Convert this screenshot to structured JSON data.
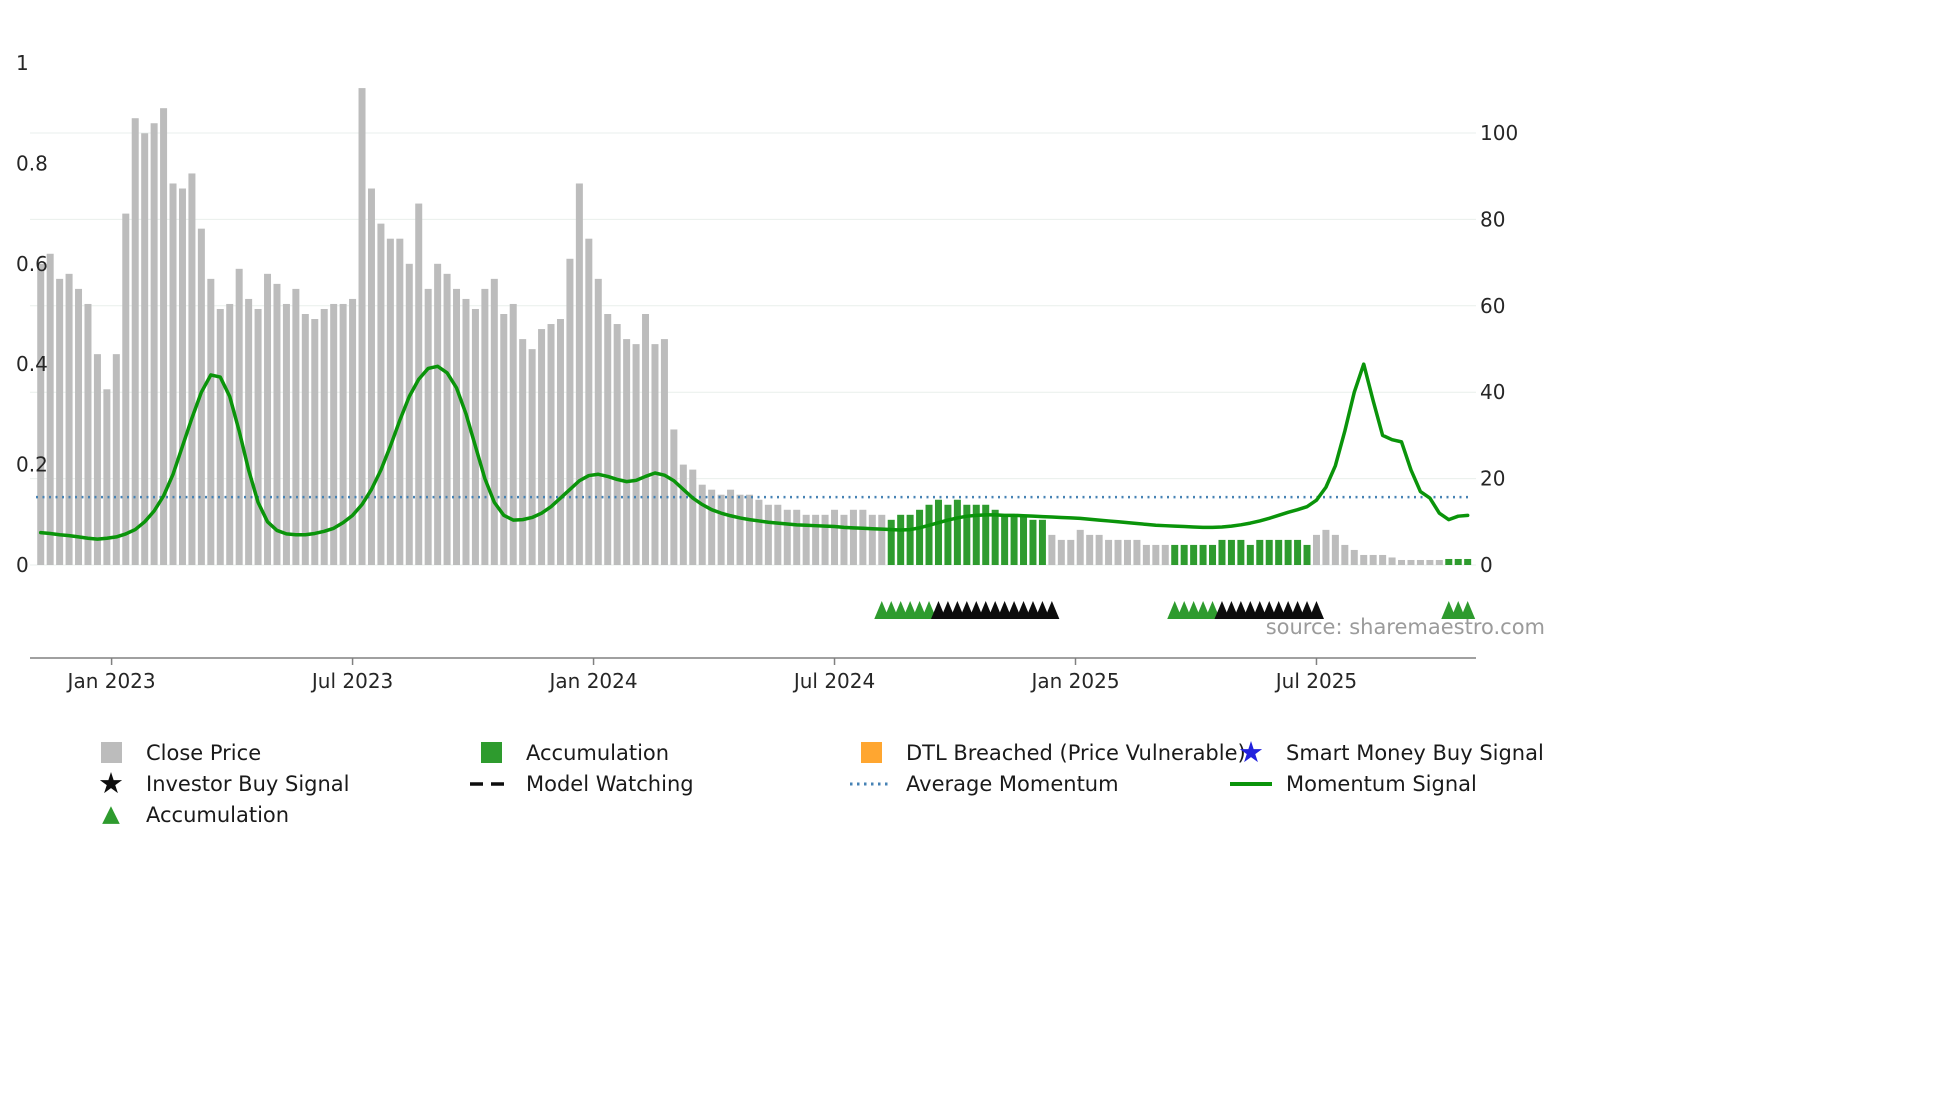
{
  "source_text": "source: sharemaestro.com",
  "colors": {
    "close": "#bcbcbc",
    "accumulation": "#2e9b2e",
    "momentum": "#0a940a",
    "avg_momentum": "#4682b4",
    "dtl": "#ffa630",
    "smart_money": "#2222dd",
    "investor": "#0d0d0d",
    "axis_text": "#262626",
    "axis_line": "#808080",
    "grid": "#e9efec",
    "source_text": "#9b9b9b"
  },
  "legend": {
    "close_price": "Close Price",
    "investor_buy_signal": "Investor Buy Signal",
    "accumulation_marker": "Accumulation",
    "accumulation_bar": "Accumulation",
    "model_watching": "Model Watching",
    "dtl_breached": "DTL Breached (Price Vulnerable)",
    "average_momentum": "Average Momentum",
    "smart_money": "Smart Money Buy Signal",
    "momentum_signal": "Momentum Signal"
  },
  "chart_data": {
    "type": "bar+line",
    "title": "",
    "n_points": 152,
    "x_axis": {
      "tick_labels": [
        "Jan 2023",
        "Jul 2023",
        "Jan 2024",
        "Jul 2024",
        "Jan 2025",
        "Jul 2025"
      ],
      "tick_positions": [
        7.5,
        33,
        58.5,
        84,
        109.5,
        135
      ]
    },
    "left_axis": {
      "ticks": [
        "0",
        "0.2",
        "0.4",
        "0.6",
        "0.8",
        "1"
      ],
      "values": [
        0,
        0.2,
        0.4,
        0.6,
        0.8,
        1
      ],
      "range": [
        0,
        1
      ]
    },
    "right_axis": {
      "ticks": [
        0,
        20,
        40,
        60,
        80,
        100
      ],
      "range": [
        0,
        116
      ]
    },
    "close_price": [
      0.6,
      0.62,
      0.57,
      0.58,
      0.55,
      0.52,
      0.42,
      0.35,
      0.42,
      0.7,
      0.89,
      0.86,
      0.88,
      0.91,
      0.76,
      0.75,
      0.78,
      0.67,
      0.57,
      0.51,
      0.52,
      0.59,
      0.53,
      0.51,
      0.58,
      0.56,
      0.52,
      0.55,
      0.5,
      0.49,
      0.51,
      0.52,
      0.52,
      0.53,
      0.95,
      0.75,
      0.68,
      0.65,
      0.65,
      0.6,
      0.72,
      0.55,
      0.6,
      0.58,
      0.55,
      0.53,
      0.51,
      0.55,
      0.57,
      0.5,
      0.52,
      0.45,
      0.43,
      0.47,
      0.48,
      0.49,
      0.61,
      0.76,
      0.65,
      0.57,
      0.5,
      0.48,
      0.45,
      0.44,
      0.5,
      0.44,
      0.45,
      0.27,
      0.2,
      0.19,
      0.16,
      0.15,
      0.14,
      0.15,
      0.14,
      0.14,
      0.13,
      0.12,
      0.12,
      0.11,
      0.11,
      0.1,
      0.1,
      0.1,
      0.11,
      0.1,
      0.11,
      0.11,
      0.1,
      0.1,
      0.09,
      0.1,
      0.1,
      0.11,
      0.12,
      0.13,
      0.12,
      0.13,
      0.12,
      0.12,
      0.12,
      0.11,
      0.1,
      0.1,
      0.1,
      0.09,
      0.09,
      0.06,
      0.05,
      0.05,
      0.07,
      0.06,
      0.06,
      0.05,
      0.05,
      0.05,
      0.05,
      0.04,
      0.04,
      0.04,
      0.04,
      0.04,
      0.04,
      0.04,
      0.04,
      0.05,
      0.05,
      0.05,
      0.04,
      0.05,
      0.05,
      0.05,
      0.05,
      0.05,
      0.04,
      0.06,
      0.07,
      0.06,
      0.04,
      0.03,
      0.02,
      0.02,
      0.02,
      0.015,
      0.01,
      0.01,
      0.01,
      0.01,
      0.01,
      0.012,
      0.012,
      0.012
    ],
    "accumulation_bar_ranges": [
      [
        90,
        106
      ],
      [
        120,
        134
      ],
      [
        149,
        151
      ]
    ],
    "momentum_signal": [
      7.5,
      7.3,
      7.0,
      6.8,
      6.5,
      6.2,
      6.0,
      6.2,
      6.5,
      7.2,
      8.2,
      10.0,
      12.5,
      16.0,
      21.0,
      27.5,
      34.0,
      40.0,
      44.0,
      43.5,
      39.0,
      31.0,
      22.0,
      14.5,
      10.0,
      8.0,
      7.2,
      7.0,
      7.0,
      7.3,
      7.8,
      8.5,
      9.8,
      11.5,
      14.0,
      17.5,
      22.0,
      27.5,
      33.5,
      39.0,
      43.0,
      45.5,
      46.0,
      44.5,
      41.0,
      35.0,
      27.5,
      20.0,
      14.5,
      11.5,
      10.4,
      10.5,
      11.0,
      12.0,
      13.5,
      15.5,
      17.5,
      19.5,
      20.7,
      21.0,
      20.5,
      19.8,
      19.3,
      19.6,
      20.5,
      21.3,
      20.8,
      19.5,
      17.5,
      15.5,
      14.0,
      12.8,
      12.0,
      11.4,
      10.9,
      10.5,
      10.2,
      9.9,
      9.7,
      9.5,
      9.3,
      9.2,
      9.1,
      9.0,
      8.9,
      8.7,
      8.6,
      8.5,
      8.4,
      8.3,
      8.2,
      8.1,
      8.2,
      8.6,
      9.2,
      9.8,
      10.4,
      10.9,
      11.3,
      11.5,
      11.6,
      11.6,
      11.5,
      11.5,
      11.4,
      11.3,
      11.2,
      11.1,
      11.0,
      10.9,
      10.8,
      10.6,
      10.4,
      10.2,
      10.0,
      9.8,
      9.6,
      9.4,
      9.2,
      9.1,
      9.0,
      8.9,
      8.8,
      8.7,
      8.7,
      8.8,
      9.0,
      9.3,
      9.7,
      10.2,
      10.8,
      11.5,
      12.2,
      12.8,
      13.5,
      15.0,
      18.0,
      23.0,
      31.0,
      40.0,
      46.5,
      38.0,
      30.0,
      29.0,
      28.5,
      22.0,
      17.0,
      15.5,
      12.0,
      10.5,
      11.3,
      11.5
    ],
    "average_momentum": 15.7,
    "markers": {
      "accumulation_triangles": [
        [
          89,
          94
        ],
        [
          120,
          124
        ],
        [
          149,
          151
        ]
      ],
      "investor_buy_triangles": [
        [
          95,
          107
        ],
        [
          125,
          135
        ]
      ]
    },
    "legend_position": "bottom",
    "grid": "horizontal-light"
  }
}
